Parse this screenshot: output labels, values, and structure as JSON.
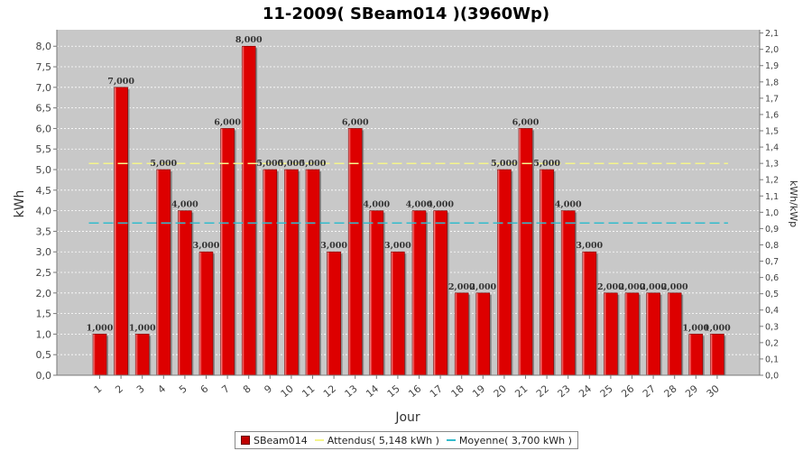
{
  "chart_data": {
    "type": "bar",
    "title": "11-2009( SBeam014 )(3960Wp)",
    "xlabel": "Jour",
    "ylabel": "kWh",
    "ylabel_right": "kWh/kWp",
    "categories": [
      "1",
      "2",
      "3",
      "4",
      "5",
      "6",
      "7",
      "8",
      "9",
      "10",
      "11",
      "12",
      "13",
      "14",
      "15",
      "16",
      "17",
      "18",
      "19",
      "20",
      "21",
      "22",
      "23",
      "24",
      "25",
      "26",
      "27",
      "28",
      "29",
      "30"
    ],
    "series": [
      {
        "name": "SBeam014",
        "values": [
          1,
          7,
          1,
          5,
          4,
          3,
          6,
          8,
          5,
          5,
          5,
          3,
          6,
          4,
          3,
          4,
          4,
          2,
          2,
          5,
          6,
          5,
          4,
          3,
          2,
          2,
          2,
          2,
          1,
          1
        ],
        "color": "#dd0000"
      }
    ],
    "data_labels": [
      "1,000",
      "7,000",
      "1,000",
      "5,000",
      "4,000",
      "3,000",
      "6,000",
      "8,000",
      "5,000",
      "5,000",
      "5,000",
      "3,000",
      "6,000",
      "4,000",
      "3,000",
      "4,000",
      "4,000",
      "2,000",
      "2,000",
      "5,000",
      "6,000",
      "5,000",
      "4,000",
      "3,000",
      "2,000",
      "2,000",
      "2,000",
      "2,000",
      "1,000",
      "1,000"
    ],
    "reference_lines": [
      {
        "name": "Attendus( 5,148 kWh )",
        "value": 5.148,
        "color": "#f5f58a"
      },
      {
        "name": "Moyenne( 3,700 kWh )",
        "value": 3.7,
        "color": "#33bbcc"
      }
    ],
    "ylim": [
      0,
      8.4
    ],
    "y_ticks": [
      "0,0",
      "0,5",
      "1,0",
      "1,5",
      "2,0",
      "2,5",
      "3,0",
      "3,5",
      "4,0",
      "4,5",
      "5,0",
      "5,5",
      "6,0",
      "6,5",
      "7,0",
      "7,5",
      "8,0"
    ],
    "y2lim": [
      0,
      2.12
    ],
    "y2_ticks": [
      "0,0",
      "0,1",
      "0,2",
      "0,3",
      "0,4",
      "0,5",
      "0,6",
      "0,7",
      "0,8",
      "0,9",
      "1,0",
      "1,1",
      "1,2",
      "1,3",
      "1,4",
      "1,5",
      "1,6",
      "1,7",
      "1,8",
      "1,9",
      "2,0",
      "2,1"
    ],
    "plot_background": "#c8c8c8",
    "grid": true,
    "legend_position": "bottom"
  }
}
